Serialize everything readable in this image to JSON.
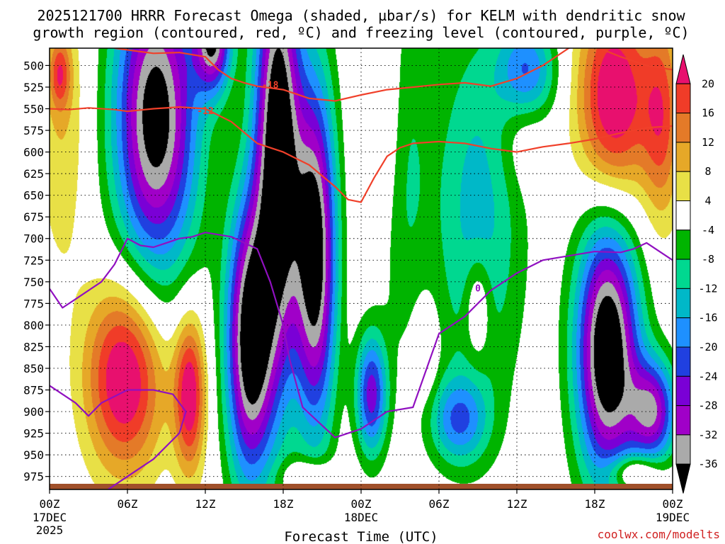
{
  "chart_data": {
    "type": "heatmap",
    "title_line1": "2025121700 HRRR Forecast Omega (shaded, µbar/s) for KELM with dendritic snow",
    "title_line2": "growth region (contoured, red, ºC) and freezing level (contoured, purple, ºC)",
    "xlabel": "Forecast Time (UTC)",
    "credit": "coolwx.com/modelts",
    "y_axis": {
      "unit": "hPa",
      "range": [
        480,
        990
      ],
      "ticks": [
        500,
        525,
        550,
        575,
        600,
        625,
        650,
        675,
        700,
        725,
        750,
        775,
        800,
        825,
        850,
        875,
        900,
        925,
        950,
        975
      ]
    },
    "x_axis": {
      "unit": "forecast hour",
      "range": [
        0,
        48
      ],
      "ticks": [
        {
          "hour": 0,
          "label": "00Z",
          "sub1": "17DEC",
          "sub2": "2025"
        },
        {
          "hour": 6,
          "label": "06Z",
          "sub1": "",
          "sub2": ""
        },
        {
          "hour": 12,
          "label": "12Z",
          "sub1": "",
          "sub2": ""
        },
        {
          "hour": 18,
          "label": "18Z",
          "sub1": "",
          "sub2": ""
        },
        {
          "hour": 24,
          "label": "00Z",
          "sub1": "18DEC",
          "sub2": ""
        },
        {
          "hour": 30,
          "label": "06Z",
          "sub1": "",
          "sub2": ""
        },
        {
          "hour": 36,
          "label": "12Z",
          "sub1": "",
          "sub2": ""
        },
        {
          "hour": 42,
          "label": "18Z",
          "sub1": "",
          "sub2": ""
        },
        {
          "hour": 48,
          "label": "00Z",
          "sub1": "19DEC",
          "sub2": ""
        }
      ]
    },
    "colorbar": {
      "levels": [
        "20",
        "16",
        "12",
        "8",
        "4",
        "-4",
        "-8",
        "-12",
        "-16",
        "-20",
        "-24",
        "-28",
        "-32",
        "-36"
      ],
      "colors": [
        "#e8106e",
        "#f03c28",
        "#e47a28",
        "#e6a828",
        "#e8e046",
        "#ffffff",
        "#00b400",
        "#00d890",
        "#00b8c8",
        "#1e90ff",
        "#2040e0",
        "#7a00d6",
        "#a000c8",
        "#aaaaaa",
        "#000000"
      ]
    },
    "omega_blobs": [
      {
        "hour": 8.2,
        "p": 560,
        "rh": 3.2,
        "rp": 180,
        "v": -40
      },
      {
        "hour": 17.6,
        "p": 600,
        "rh": 1.8,
        "rp": 260,
        "v": -44
      },
      {
        "hour": 20.5,
        "p": 720,
        "rh": 1.6,
        "rp": 200,
        "v": -40
      },
      {
        "hour": 15.4,
        "p": 820,
        "rh": 1.8,
        "rp": 160,
        "v": -40
      },
      {
        "hour": 43.0,
        "p": 830,
        "rh": 2.4,
        "rp": 150,
        "v": -44
      },
      {
        "hour": 12.6,
        "p": 470,
        "rh": 1.4,
        "rp": 60,
        "v": -34
      },
      {
        "hour": 24.8,
        "p": 880,
        "rh": 1.2,
        "rp": 70,
        "v": -26
      },
      {
        "hour": 36.8,
        "p": 510,
        "rh": 2.2,
        "rp": 60,
        "v": -22
      },
      {
        "hour": 33.0,
        "p": 670,
        "rh": 3.5,
        "rp": 230,
        "v": -14
      },
      {
        "hour": 27.0,
        "p": 600,
        "rh": 2.0,
        "rp": 200,
        "v": -12
      },
      {
        "hour": 31.5,
        "p": 910,
        "rh": 2.2,
        "rp": 50,
        "v": -18
      },
      {
        "hour": 46.5,
        "p": 900,
        "rh": 1.8,
        "rp": 60,
        "v": -30
      },
      {
        "hour": 5.8,
        "p": 860,
        "rh": 3.0,
        "rp": 110,
        "v": 26
      },
      {
        "hour": 10.8,
        "p": 880,
        "rh": 1.2,
        "rp": 90,
        "v": 24
      },
      {
        "hour": 43.5,
        "p": 540,
        "rh": 2.8,
        "rp": 120,
        "v": 26
      },
      {
        "hour": 47.2,
        "p": 560,
        "rh": 1.5,
        "rp": 120,
        "v": 16
      },
      {
        "hour": 26.0,
        "p": 570,
        "rh": 1.8,
        "rp": 150,
        "v": 10
      },
      {
        "hour": 36.5,
        "p": 560,
        "rh": 2.0,
        "rp": 70,
        "v": 8
      },
      {
        "hour": 33.0,
        "p": 780,
        "rh": 1.0,
        "rp": 60,
        "v": 11
      },
      {
        "hour": 1.0,
        "p": 560,
        "rh": 2.0,
        "rp": 180,
        "v": 8
      },
      {
        "hour": 0.8,
        "p": 510,
        "rh": 0.8,
        "rp": 40,
        "v": 14
      },
      {
        "hour": 29.0,
        "p": 830,
        "rh": 1.0,
        "rp": 60,
        "v": 6
      },
      {
        "hour": 20.0,
        "p": 975,
        "rh": 2.0,
        "rp": 20,
        "v": 10
      },
      {
        "hour": 45.0,
        "p": 970,
        "rh": 2.0,
        "rp": 20,
        "v": 14
      }
    ],
    "dgz_contours": [
      {
        "label": "-12",
        "label_hour": 12.0,
        "label_p": 552,
        "hours": [
          0,
          1.5,
          3,
          5,
          6,
          8,
          10,
          12,
          14,
          16,
          18,
          20,
          22,
          23,
          24,
          25,
          26,
          27,
          28,
          30,
          32,
          34,
          36,
          38,
          40,
          42,
          44,
          46,
          48
        ],
        "p": [
          550,
          551,
          549,
          551,
          553,
          550,
          548,
          550,
          565,
          590,
          600,
          615,
          640,
          655,
          658,
          630,
          605,
          595,
          590,
          588,
          590,
          596,
          600,
          594,
          590,
          585,
          578,
          572,
          570
        ]
      },
      {
        "label": "-18",
        "label_hour": 17.0,
        "label_p": 522,
        "hours": [
          5,
          8,
          10,
          12,
          13,
          14,
          15,
          16,
          17,
          18,
          19,
          20,
          22,
          24,
          26,
          28,
          30,
          32,
          34,
          36,
          38,
          40,
          41,
          42,
          44,
          46,
          48
        ],
        "p": [
          480,
          486,
          485,
          490,
          505,
          515,
          520,
          524,
          526,
          528,
          533,
          538,
          541,
          534,
          528,
          525,
          522,
          520,
          524,
          515,
          500,
          480,
          475,
          478,
          490,
          500,
          505
        ]
      }
    ],
    "freezing_level": {
      "label": "0",
      "label_hour": 33.0,
      "label_p": 757,
      "hours": [
        0,
        1,
        2,
        4,
        5,
        6,
        7,
        8,
        9,
        10,
        11,
        12,
        14,
        16,
        17,
        18,
        18.5,
        19.5,
        22,
        23,
        24,
        26,
        28,
        30,
        32,
        34,
        36,
        38,
        40,
        42,
        44,
        45,
        46,
        48
      ],
      "p": [
        758,
        780,
        770,
        750,
        730,
        700,
        708,
        710,
        705,
        700,
        698,
        693,
        698,
        712,
        750,
        800,
        840,
        895,
        930,
        925,
        920,
        900,
        895,
        810,
        790,
        760,
        740,
        725,
        720,
        715,
        716,
        712,
        705,
        725
      ]
    },
    "freezing_level_low": {
      "hours": [
        0,
        2,
        3,
        4,
        6,
        8,
        9.5,
        10.5,
        10,
        8,
        6,
        4.5
      ],
      "p": [
        870,
        890,
        905,
        890,
        875,
        875,
        880,
        900,
        925,
        955,
        975,
        990
      ]
    }
  }
}
